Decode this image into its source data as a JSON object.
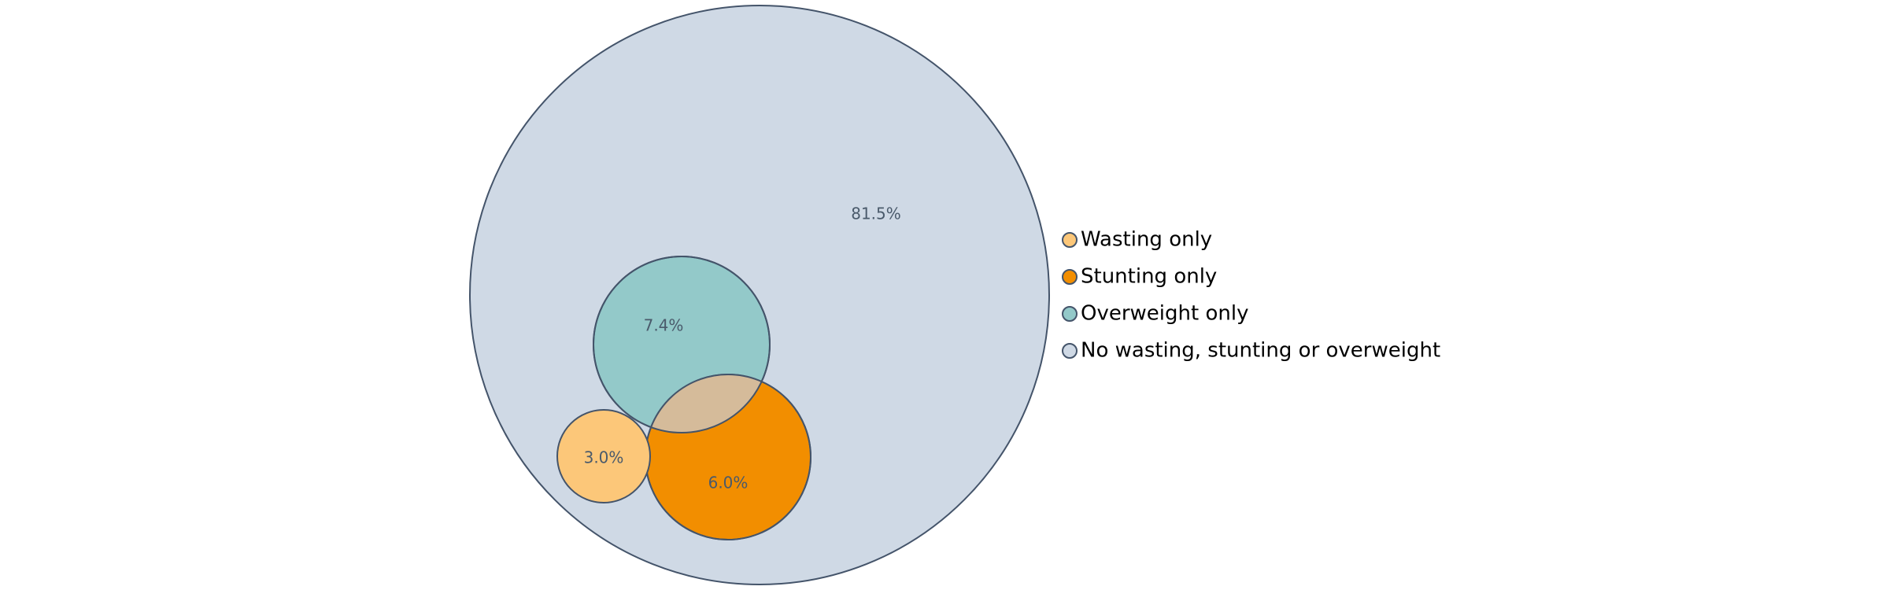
{
  "chart_data": {
    "type": "venn",
    "title": "",
    "stroke_color": "#44546a",
    "sets": [
      {
        "id": "none",
        "name": "No wasting, stunting or overweight",
        "value": 81.5,
        "label": "81.5%",
        "color": "#cfd9e5"
      },
      {
        "id": "overweight",
        "name": "Overweight only",
        "value": 7.4,
        "label": "7.4%",
        "color": "#93c9c9"
      },
      {
        "id": "stunting",
        "name": "Stunting only",
        "value": 6.0,
        "label": "6.0%",
        "color": "#f28e00"
      },
      {
        "id": "wasting",
        "name": "Wasting only",
        "value": 3.0,
        "label": "3.0%",
        "color": "#fcc779"
      }
    ],
    "overlap": {
      "sets": [
        "overweight",
        "stunting"
      ],
      "color": "#d5bb9a"
    },
    "legend": {
      "position": "right",
      "entries": [
        {
          "name": "Wasting only",
          "color": "#fcc779"
        },
        {
          "name": "Stunting only",
          "color": "#f28e00"
        },
        {
          "name": "Overweight only",
          "color": "#93c9c9"
        },
        {
          "name": "No wasting, stunting or overweight",
          "color": "#cfd9e5"
        }
      ]
    }
  }
}
